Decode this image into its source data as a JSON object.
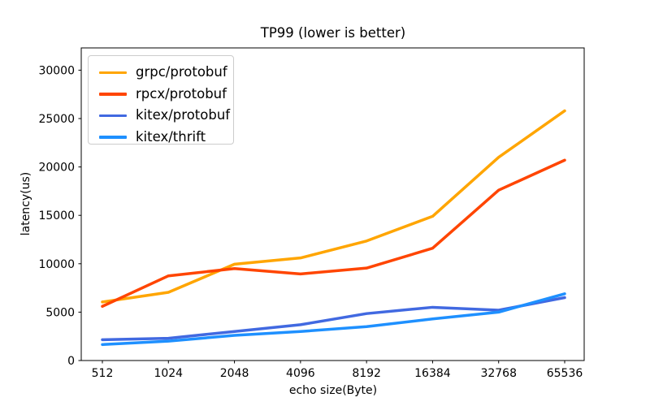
{
  "chart_data": {
    "type": "line",
    "title": "TP99 (lower is better)",
    "xlabel": "echo size(Byte)",
    "ylabel": "latency(us)",
    "categories": [
      "512",
      "1024",
      "2048",
      "4096",
      "8192",
      "16384",
      "32768",
      "65536"
    ],
    "y_ticks": [
      "0",
      "5000",
      "10000",
      "15000",
      "20000",
      "25000",
      "30000"
    ],
    "y_tick_values": [
      0,
      5000,
      10000,
      15000,
      20000,
      25000,
      30000
    ],
    "ylim": [
      0,
      32300
    ],
    "grid": false,
    "legend_position": "upper left",
    "series": [
      {
        "name": "grpc/protobuf",
        "color": "#ffa societal500",
        "values": []
      },
      {
        "name": "rpcx/protobuf",
        "color": "#ff4500",
        "values": []
      },
      {
        "name": "kitex/protobuf",
        "color": "#4169e1",
        "values": []
      },
      {
        "name": "kitex/thrift",
        "color": "#1e90ff",
        "values": []
      }
    ]
  }
}
